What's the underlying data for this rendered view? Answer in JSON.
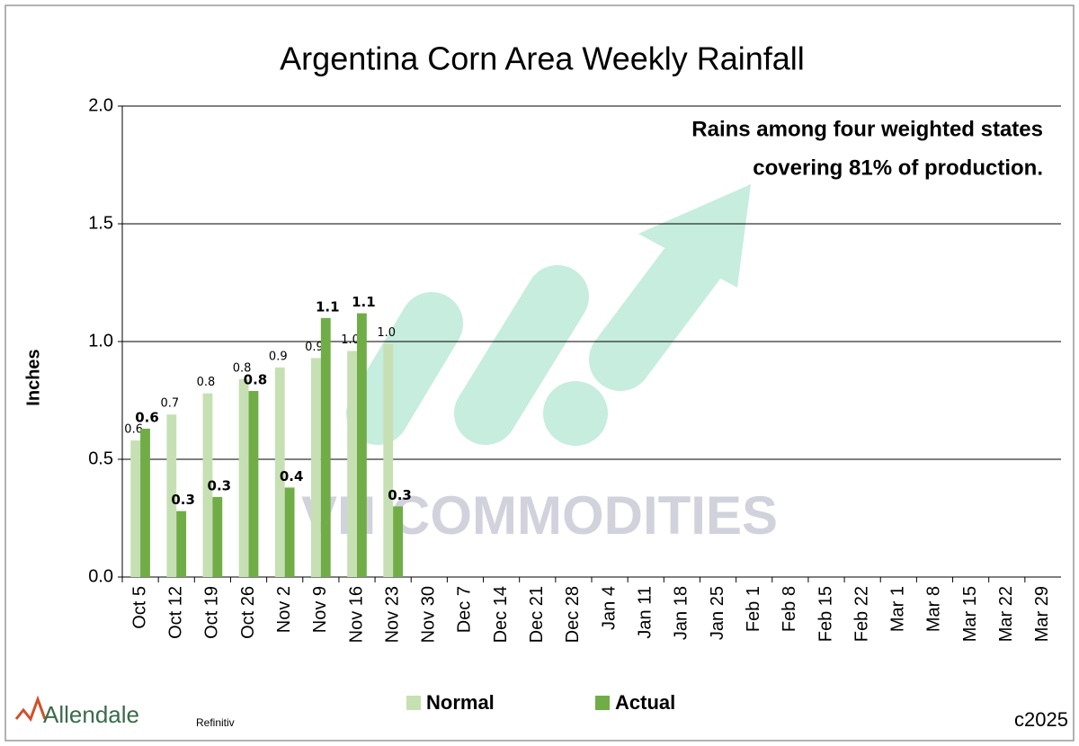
{
  "chart_data": {
    "type": "bar",
    "title": "Argentina Corn Area Weekly Rainfall",
    "y_label": "Inches",
    "annotation": [
      "Rains among four weighted states",
      "covering 81% of production."
    ],
    "watermark": "VN COMMODITIES",
    "logo": "Allendale",
    "source": "Refinitiv",
    "copyright": "c2025",
    "categories": [
      "Oct 5",
      "Oct 12",
      "Oct 19",
      "Oct 26",
      "Nov 2",
      "Nov 9",
      "Nov 16",
      "Nov 23",
      "Nov 30",
      "Dec 7",
      "Dec 14",
      "Dec 21",
      "Dec 28",
      "Jan 4",
      "Jan 11",
      "Jan 18",
      "Jan 25",
      "Feb 1",
      "Feb 8",
      "Feb 15",
      "Feb 22",
      "Mar 1",
      "Mar 8",
      "Mar 15",
      "Mar 22",
      "Mar 29"
    ],
    "series": [
      {
        "name": "Normal",
        "color": "#c6e0b4",
        "values": [
          0.58,
          0.69,
          0.78,
          0.84,
          0.89,
          0.93,
          0.96,
          0.99,
          null,
          null,
          null,
          null,
          null,
          null,
          null,
          null,
          null,
          null,
          null,
          null,
          null,
          null,
          null,
          null,
          null,
          null
        ],
        "value_labels": [
          "0.6",
          "0.7",
          "0.8",
          "0.8",
          "0.9",
          "0.9",
          "1.0",
          "1.0",
          null,
          null,
          null,
          null,
          null,
          null,
          null,
          null,
          null,
          null,
          null,
          null,
          null,
          null,
          null,
          null,
          null,
          null
        ]
      },
      {
        "name": "Actual",
        "color": "#70ad47",
        "values": [
          0.63,
          0.28,
          0.34,
          0.79,
          0.38,
          1.1,
          1.12,
          0.3,
          null,
          null,
          null,
          null,
          null,
          null,
          null,
          null,
          null,
          null,
          null,
          null,
          null,
          null,
          null,
          null,
          null,
          null
        ],
        "value_labels": [
          "0.6",
          "0.3",
          "0.3",
          "0.8",
          "0.4",
          "1.1",
          "1.1",
          "0.3",
          null,
          null,
          null,
          null,
          null,
          null,
          null,
          null,
          null,
          null,
          null,
          null,
          null,
          null,
          null,
          null,
          null,
          null
        ]
      }
    ],
    "ylim": [
      0,
      2
    ],
    "yticks": [
      {
        "value": 0,
        "label": "0.0"
      },
      0.5,
      {
        "value": 1,
        "label": "1.0"
      },
      1.5,
      {
        "value": 2,
        "label": "2.0"
      }
    ],
    "grid": true
  }
}
